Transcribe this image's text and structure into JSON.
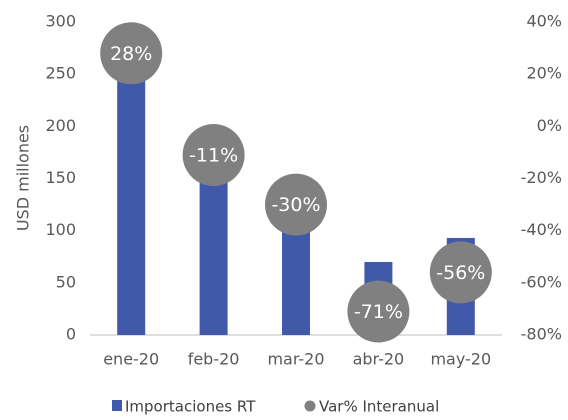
{
  "chart_data": {
    "type": "bar-dot",
    "y_label": "USD millones",
    "categories": [
      "ene-20",
      "feb-20",
      "mar-20",
      "abr-20",
      "may-20"
    ],
    "series": [
      {
        "name": "Importaciones RT",
        "color": "#4059a9",
        "values": [
          260,
          150,
          105,
          70,
          93
        ]
      },
      {
        "name": "Var% Interanual",
        "color": "#808080",
        "axis": "y2",
        "values": [
          28,
          -11,
          -30,
          -71,
          -56
        ],
        "value_labels": [
          "28%",
          "-11%",
          "-30%",
          "-71%",
          "-56%"
        ]
      }
    ],
    "ylim": [
      0,
      300
    ],
    "yticks": [
      0,
      50,
      100,
      150,
      200,
      250,
      300
    ],
    "y2lim": [
      -80,
      40
    ],
    "y2ticks": [
      {
        "value": -80,
        "label": "-80%"
      },
      {
        "value": -60,
        "label": "-60%"
      },
      {
        "value": -40,
        "label": "-40%"
      },
      {
        "value": -20,
        "label": "-20%"
      },
      {
        "value": 0,
        "label": "0%"
      },
      {
        "value": 20,
        "label": "20%"
      },
      {
        "value": 40,
        "label": "40%"
      }
    ]
  }
}
